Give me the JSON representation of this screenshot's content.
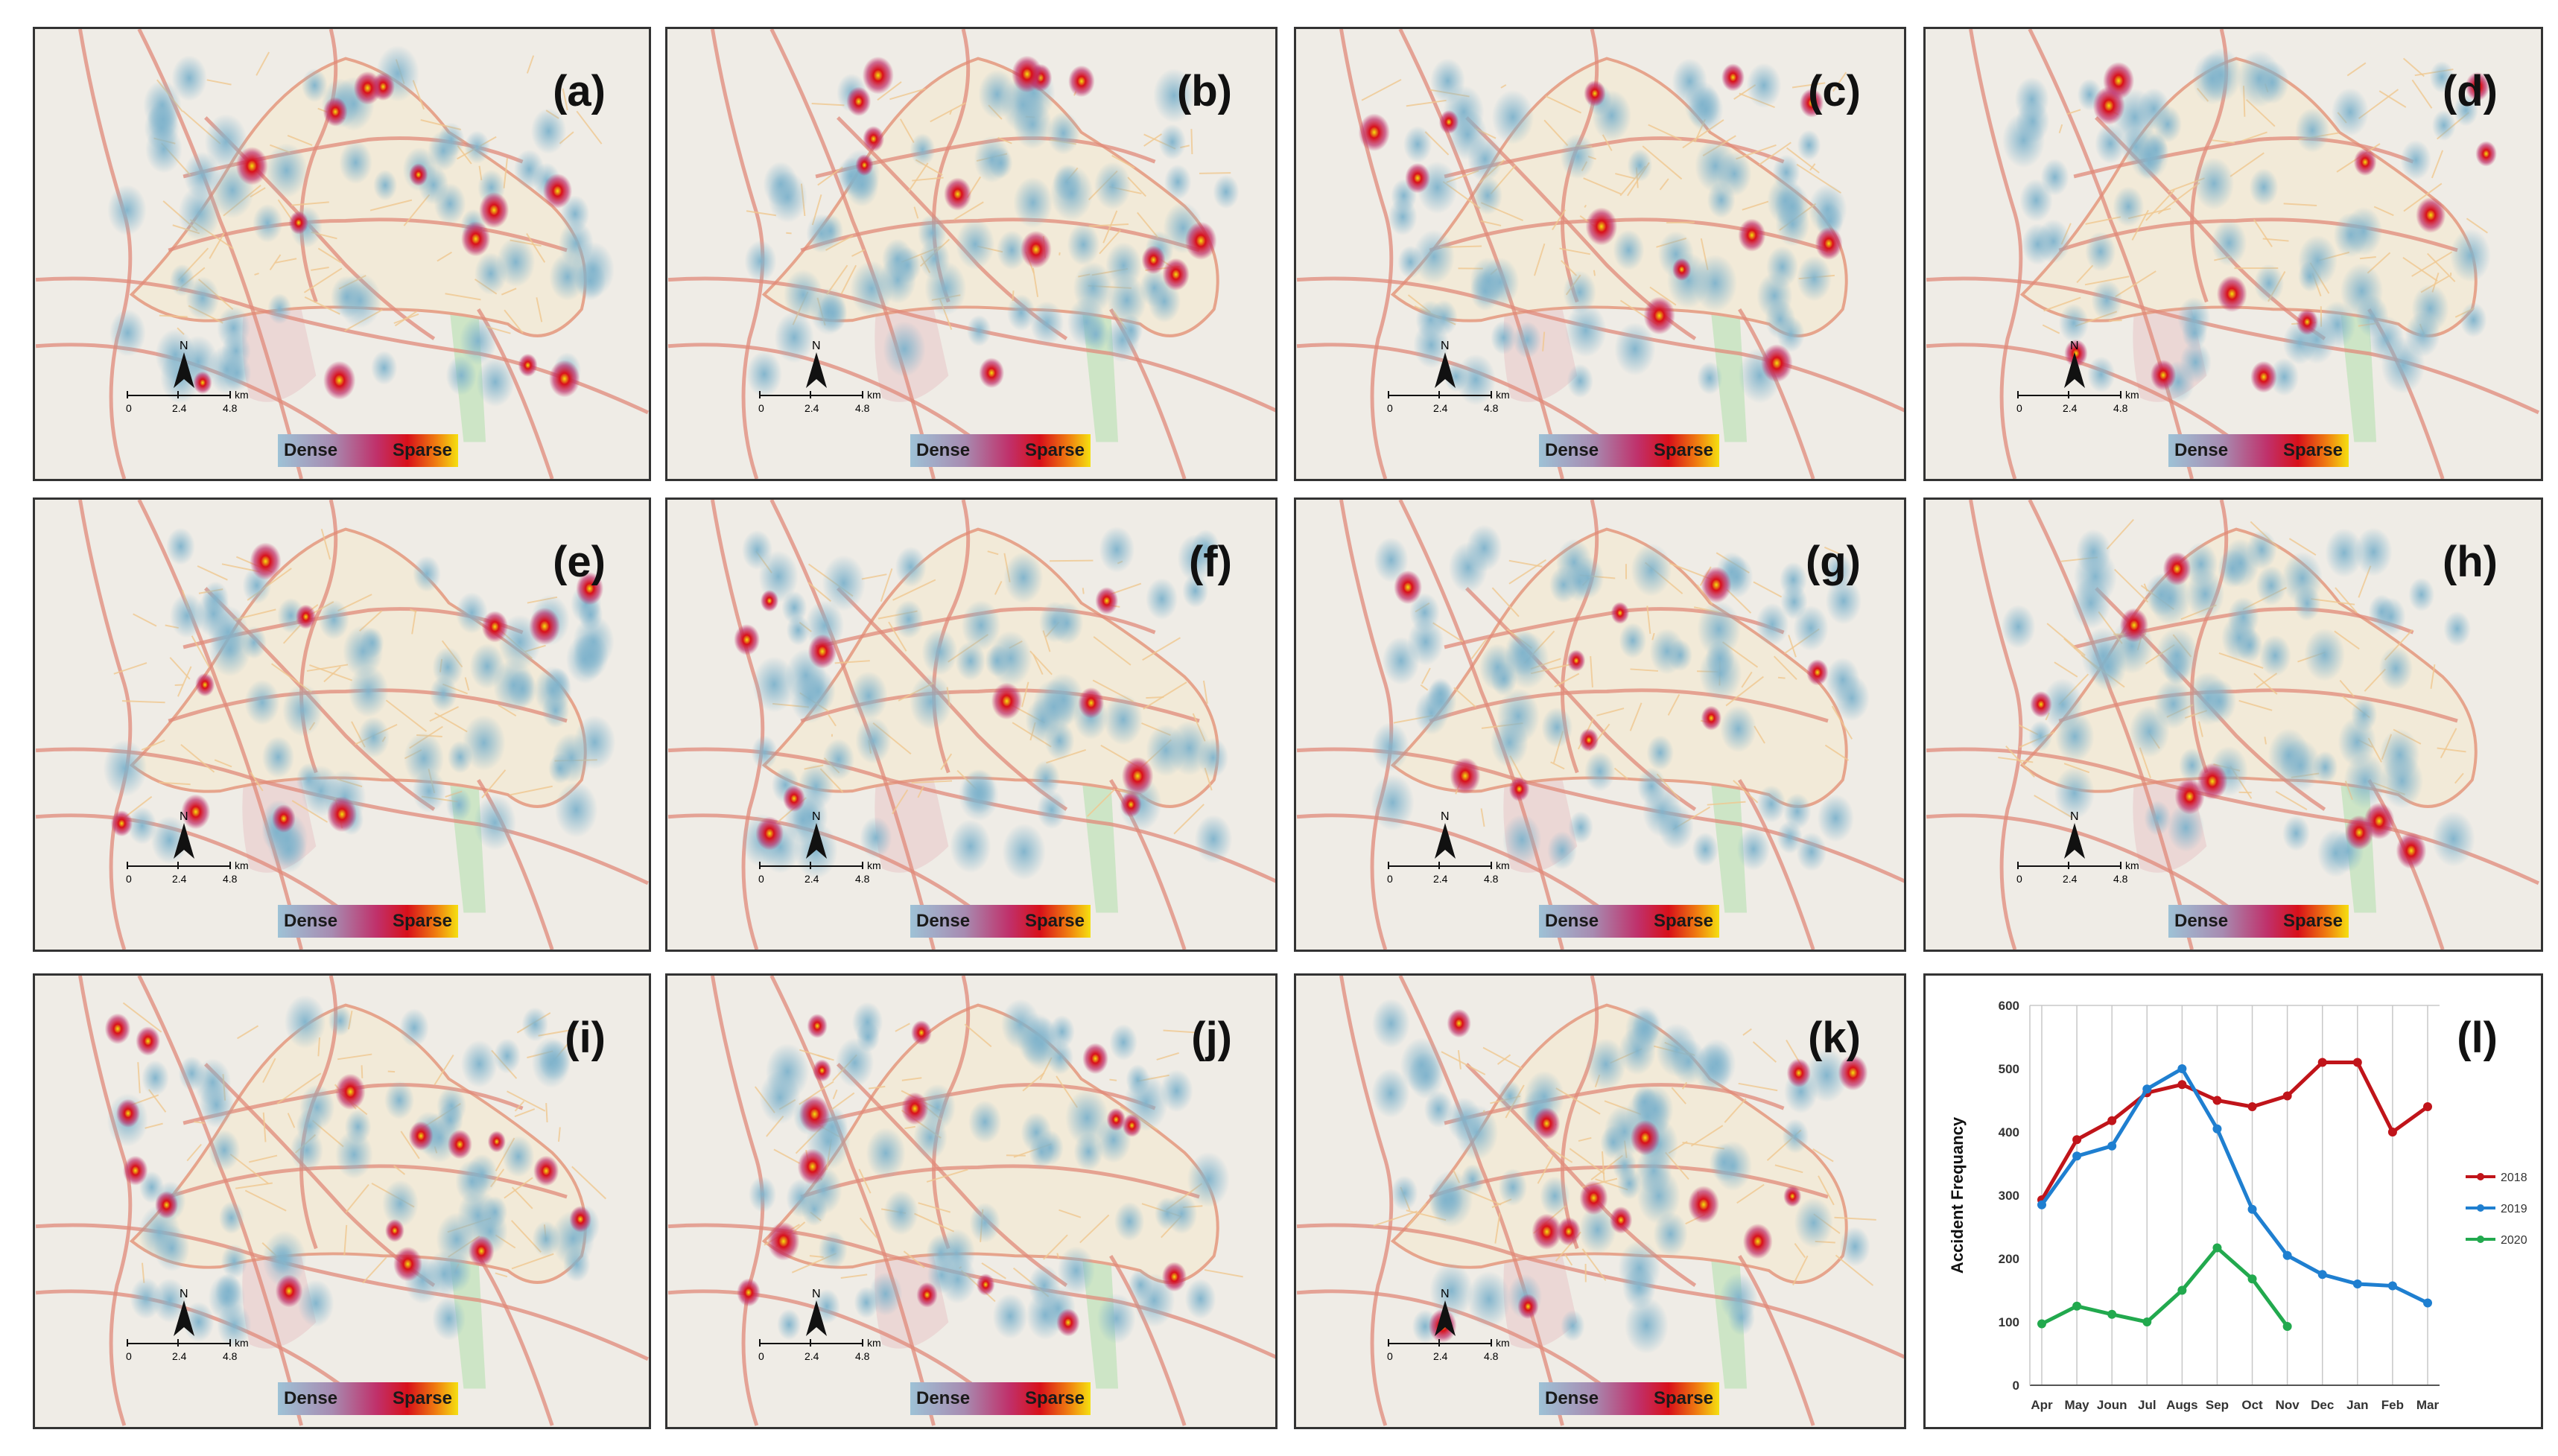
{
  "panels": [
    {
      "label": "(a)"
    },
    {
      "label": "(b)"
    },
    {
      "label": "(c)"
    },
    {
      "label": "(d)"
    },
    {
      "label": "(e)"
    },
    {
      "label": "(f)"
    },
    {
      "label": "(g)"
    },
    {
      "label": "(h)"
    },
    {
      "label": "(i)"
    },
    {
      "label": "(j)"
    },
    {
      "label": "(k)"
    }
  ],
  "legend": {
    "dense": "Dense",
    "sparse": "Sparse"
  },
  "scale": {
    "north": "N",
    "t0": "0",
    "t1": "2.4",
    "t2": "4.8",
    "unit": "km"
  },
  "chart_panel_label": "(l)",
  "chart_data": {
    "type": "line",
    "categories": [
      "Apr",
      "May",
      "Joun",
      "Jul",
      "Augs",
      "Sep",
      "Oct",
      "Nov",
      "Dec",
      "Jan",
      "Feb",
      "Mar"
    ],
    "series": [
      {
        "name": "2018",
        "color": "#c0141a",
        "values": [
          293,
          388,
          418,
          462,
          475,
          450,
          440,
          457,
          510,
          510,
          400,
          440
        ]
      },
      {
        "name": "2019",
        "color": "#1f7fd0",
        "values": [
          285,
          362,
          378,
          468,
          500,
          405,
          278,
          205,
          175,
          160,
          157,
          130
        ]
      },
      {
        "name": "2020",
        "color": "#22a94e",
        "values": [
          97,
          125,
          112,
          100,
          150,
          217,
          168,
          93,
          null,
          null,
          null,
          null
        ]
      }
    ],
    "ylabel": "Accident Frequancy",
    "ylim": [
      0,
      600
    ],
    "yticks": [
      0,
      100,
      200,
      300,
      400,
      500,
      600
    ],
    "grid": "vertical",
    "legend_position": "right"
  }
}
